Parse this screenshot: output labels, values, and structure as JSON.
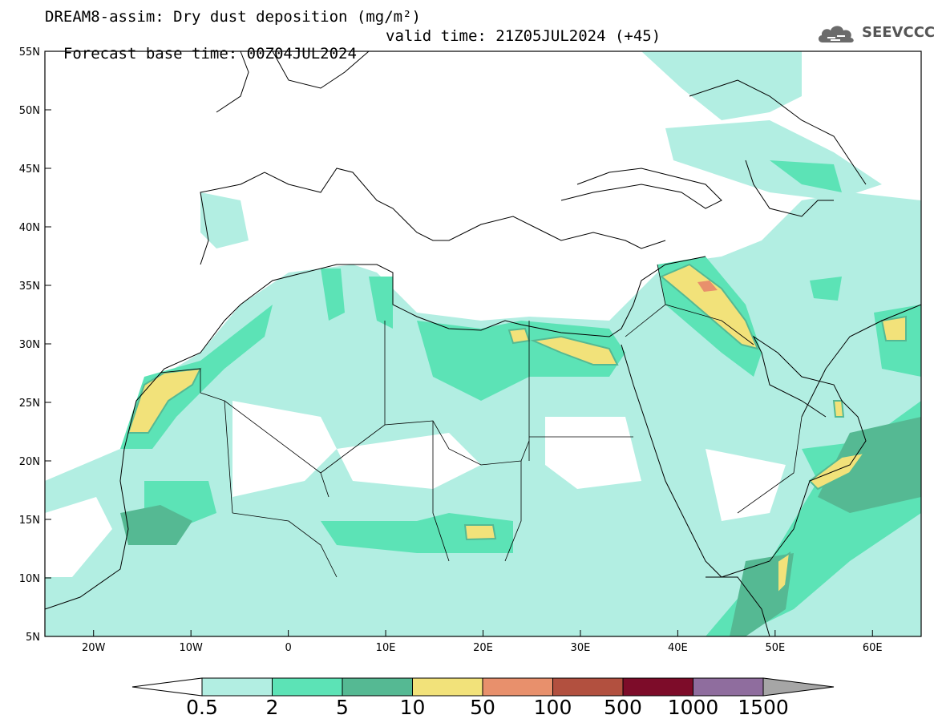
{
  "title": {
    "line1": "DREAM8-assim: Dry dust deposition (mg/m²)",
    "line2": "Forecast base time: 00Z04JUL2024",
    "valid": "valid time: 21Z05JUL2024 (+45)"
  },
  "logo": {
    "icon": "cloud-icon",
    "text": "SEEVCCC"
  },
  "map": {
    "lon_range": [
      -25,
      65
    ],
    "lat_range": [
      5,
      55
    ],
    "lat_ticks": [
      "55N",
      "50N",
      "45N",
      "40N",
      "35N",
      "30N",
      "25N",
      "20N",
      "15N",
      "10N",
      "5N"
    ],
    "lon_ticks": [
      "20W",
      "10W",
      "0",
      "10E",
      "20E",
      "30E",
      "40E",
      "50E",
      "60E"
    ]
  },
  "colorbar": {
    "labels": [
      "0.5",
      "2",
      "5",
      "10",
      "50",
      "100",
      "500",
      "1000",
      "1500"
    ],
    "colors": [
      "#b2eee2",
      "#5ce3b6",
      "#55b993",
      "#f2e27a",
      "#e8906c",
      "#b2503f",
      "#7d0c29",
      "#8f6d9e",
      "#a6a6a6"
    ]
  }
}
